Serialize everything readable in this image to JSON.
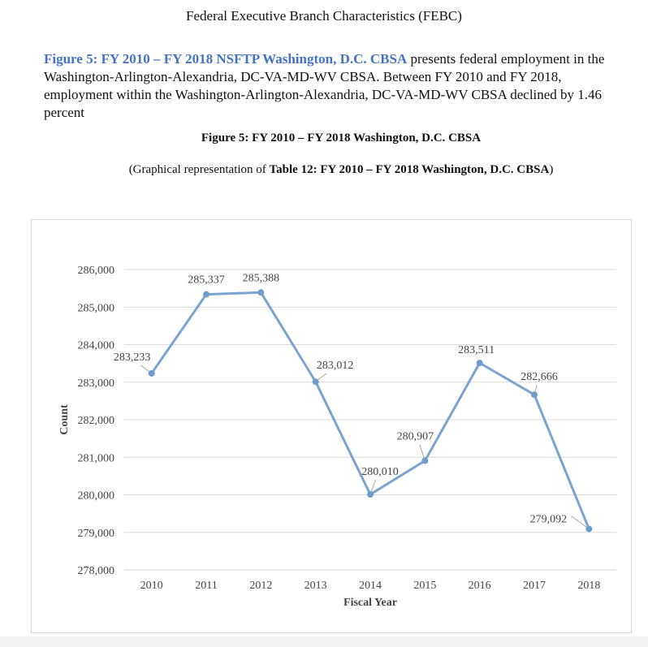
{
  "document": {
    "header": "Federal Executive Branch Characteristics (FEBC)",
    "intro_link": "Figure 5: FY 2010 – FY 2018 NSFTP Washington, D.C. CBSA",
    "intro_text": " presents federal employment in the Washington-Arlington-Alexandria, DC-VA-MD-WV CBSA. Between FY 2010 and FY 2018, employment within the Washington-Arlington-Alexandria, DC-VA-MD-WV CBSA declined by 1.46 percent",
    "figure_title": "Figure 5: FY 2010 – FY 2018 Washington, D.C. CBSA",
    "figure_subtitle_prefix": "(Graphical representation of ",
    "figure_subtitle_bold": "Table 12: FY 2010 – FY 2018 Washington, D.C. CBSA",
    "figure_subtitle_suffix": ")"
  },
  "chart_data": {
    "type": "line",
    "title": "",
    "xlabel": "Fiscal Year",
    "ylabel": "Count",
    "x": [
      "2010",
      "2011",
      "2012",
      "2013",
      "2014",
      "2015",
      "2016",
      "2017",
      "2018"
    ],
    "series": [
      {
        "values": [
          283233,
          285337,
          285388,
          283012,
          280010,
          280907,
          283511,
          282666,
          279092
        ]
      }
    ],
    "data_labels": [
      "283,233",
      "285,337",
      "285,388",
      "283,012",
      "280,010",
      "280,907",
      "283,511",
      "282,666",
      "279,092"
    ],
    "ylim": [
      278000,
      286000
    ],
    "yticks": [
      278000,
      279000,
      280000,
      281000,
      282000,
      283000,
      284000,
      285000,
      286000
    ],
    "ytick_labels": [
      "278,000",
      "279,000",
      "280,000",
      "281,000",
      "282,000",
      "283,000",
      "284,000",
      "285,000",
      "286,000"
    ],
    "grid": true,
    "legend": "none",
    "colors": {
      "line": "#7aa3d0",
      "marker": "#6f9ccb",
      "grid": "#d9d9d9"
    }
  }
}
